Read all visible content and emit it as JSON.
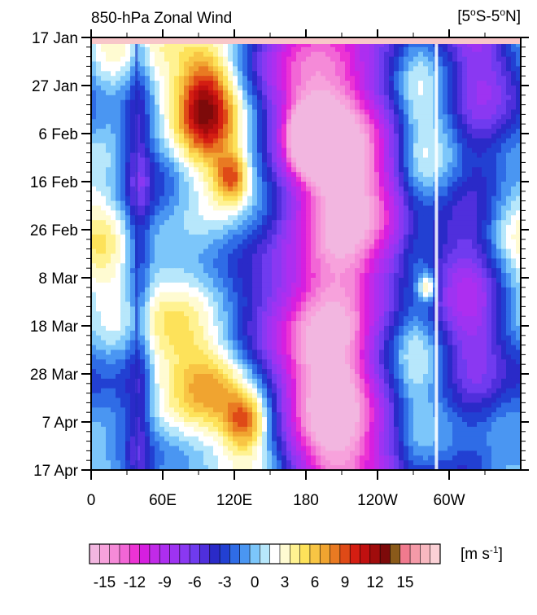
{
  "chart_data": {
    "type": "heatmap",
    "title": "850-hPa Zonal Wind",
    "region": "[5°S-5°N]",
    "xlabel": "",
    "ylabel": "",
    "x_ticks": [
      "0",
      "60E",
      "120E",
      "180",
      "120W",
      "60W"
    ],
    "x_tick_lon": [
      0,
      60,
      120,
      180,
      240,
      300
    ],
    "x_range_lon": [
      0,
      360
    ],
    "y_ticks": [
      "17 Jan",
      "27 Jan",
      "6 Feb",
      "16 Feb",
      "26 Feb",
      "8 Mar",
      "18 Mar",
      "28 Mar",
      "7 Apr",
      "17 Apr"
    ],
    "y_tick_day": [
      0,
      10,
      20,
      30,
      40,
      50,
      60,
      70,
      80,
      90
    ],
    "y_range_day": [
      0,
      90
    ],
    "colorbar": {
      "unit": "[m s-1]",
      "min": -16.5,
      "step": 1,
      "tick_labels": [
        "-15",
        "-12",
        "-9",
        "-6",
        "-3",
        "0",
        "3",
        "6",
        "9",
        "12",
        "15"
      ],
      "tick_values": [
        -15,
        -12,
        -9,
        -6,
        -3,
        0,
        3,
        6,
        9,
        12,
        15
      ],
      "colors": [
        "#f2b6e0",
        "#f7a2dc",
        "#f58ad8",
        "#f266d6",
        "#ec33d4",
        "#d61fe0",
        "#c12ae8",
        "#ad2ef0",
        "#9e33f2",
        "#8a38f2",
        "#6f3bef",
        "#4f2fdc",
        "#2a2ac8",
        "#2240d2",
        "#2f6ce6",
        "#4a96f2",
        "#7cc6fa",
        "#b7e7fb",
        "#ffffff",
        "#fffbd2",
        "#fff291",
        "#fde25a",
        "#f8c544",
        "#f0a430",
        "#e97a22",
        "#df4a17",
        "#d41e12",
        "#c01010",
        "#a00c0c",
        "#7d0a0a",
        "#8a5a1a",
        "#f07a8e",
        "#f59aa8",
        "#f8b8c0",
        "#fbd1d6"
      ]
    },
    "field_features": [
      {
        "name": "indian ocean westerly burst",
        "lon_center": 95,
        "lon_width": 22,
        "day_center": 14,
        "day_width": 10,
        "value": 8
      },
      {
        "name": "westerly streak",
        "lon_center": 118,
        "lon_width": 14,
        "day_center": 29,
        "day_width": 5,
        "value": 7
      },
      {
        "name": "april westerly burst",
        "lon_center": 130,
        "lon_width": 18,
        "day_center": 80,
        "day_width": 6,
        "value": 7
      },
      {
        "name": "april westerly",
        "lon_center": 102,
        "lon_width": 28,
        "day_center": 72,
        "day_width": 8,
        "value": 3
      },
      {
        "name": "central pacific easterly",
        "lon_center": 185,
        "lon_width": 18,
        "day_center": 21,
        "day_width": 6,
        "value": -14
      },
      {
        "name": "east pacific westerly",
        "lon_center": 282,
        "lon_width": 8,
        "day_center": 52,
        "day_width": 3,
        "value": 7
      },
      {
        "name": "pacific easterly band",
        "lon_center": 200,
        "lon_width": 55,
        "day_center": 45,
        "day_width": 60,
        "value": -9
      }
    ]
  }
}
